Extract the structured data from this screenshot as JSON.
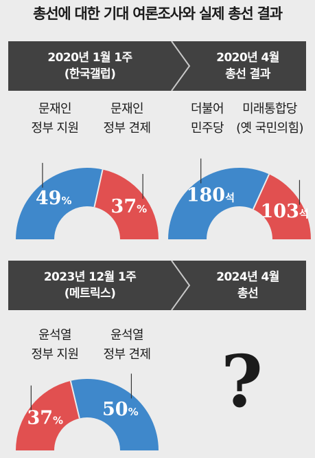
{
  "title": "총선에 대한 기대 여론조사와 실제 총선 결과",
  "colors": {
    "blue": "#3f88cb",
    "red": "#e15050",
    "band": "#414141",
    "background": "#ececec"
  },
  "bands": [
    {
      "left": {
        "line1": "2020년 1월 1주",
        "line2": "(한국갤럽)"
      },
      "right": {
        "line1": "2020년 4월",
        "line2": "총선 결과"
      }
    },
    {
      "left": {
        "line1": "2023년 12월 1주",
        "line2": "(메트릭스)"
      },
      "right": {
        "line1": "2024년 4월",
        "line2": "총선"
      }
    }
  ],
  "question_mark": "?",
  "chart_data": [
    {
      "type": "pie",
      "categories": [
        "문재인 정부 지원",
        "문재인 정부 견제"
      ],
      "values": [
        49,
        37
      ],
      "labels": [
        "49%",
        "37%"
      ],
      "colors": [
        "#3f88cb",
        "#e15050"
      ],
      "category_lines": [
        [
          "문재인",
          "정부 지원"
        ],
        [
          "문재인",
          "정부 견제"
        ]
      ]
    },
    {
      "type": "pie",
      "categories": [
        "더불어 민주당",
        "미래통합당 (옛 국민의힘)"
      ],
      "values": [
        180,
        103
      ],
      "labels": [
        "180석",
        "103석"
      ],
      "colors": [
        "#3f88cb",
        "#e15050"
      ],
      "category_lines": [
        [
          "더불어",
          "민주당"
        ],
        [
          "미래통합당",
          "(옛 국민의힘)"
        ]
      ]
    },
    {
      "type": "pie",
      "categories": [
        "윤석열 정부 지원",
        "윤석열 정부 견제"
      ],
      "values": [
        37,
        50
      ],
      "labels": [
        "37%",
        "50%"
      ],
      "colors": [
        "#e15050",
        "#3f88cb"
      ],
      "category_lines": [
        [
          "윤석열",
          "정부 지원"
        ],
        [
          "윤석열",
          "정부 견제"
        ]
      ]
    }
  ]
}
